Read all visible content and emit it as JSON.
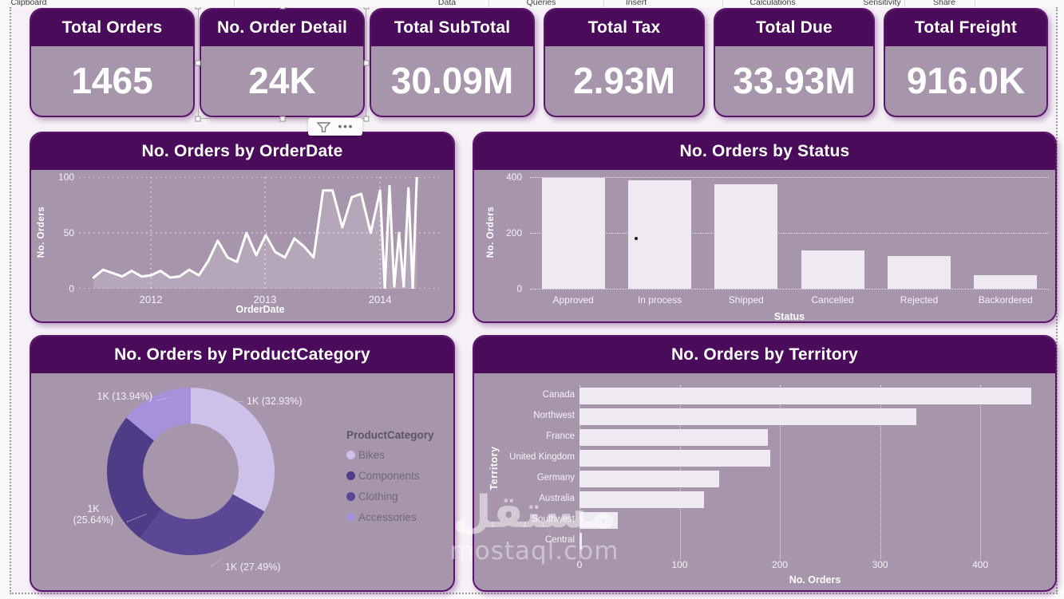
{
  "ribbon": {
    "groups": [
      "Clipboard",
      "Data",
      "Queries",
      "Insert",
      "Calculations",
      "Sensitivity",
      "Share"
    ]
  },
  "kpis": [
    {
      "label": "Total Orders",
      "value": "1465"
    },
    {
      "label": "No. Order Detail",
      "value": "24K"
    },
    {
      "label": "Total SubTotal",
      "value": "30.09M"
    },
    {
      "label": "Total Tax",
      "value": "2.93M"
    },
    {
      "label": "Total Due",
      "value": "33.93M"
    },
    {
      "label": "Total Freight",
      "value": "916.0K"
    }
  ],
  "selection": {
    "selected_card": "No. Order Detail",
    "filter_icon": "funnel-icon",
    "more_icon": "ellipsis-icon",
    "more_glyph": "•••"
  },
  "chart_data": [
    {
      "type": "line",
      "title": "No. Orders by OrderDate",
      "xlabel": "OrderDate",
      "ylabel": "No. Orders",
      "ylim": [
        0,
        100
      ],
      "y_ticks": [
        0,
        50,
        100
      ],
      "x_ticks": [
        {
          "label": "2012",
          "f": 0.198
        },
        {
          "label": "2013",
          "f": 0.512
        },
        {
          "label": "2014",
          "f": 0.829
        }
      ],
      "points": [
        [
          0.04,
          10
        ],
        [
          0.066,
          17
        ],
        [
          0.093,
          14
        ],
        [
          0.119,
          11
        ],
        [
          0.145,
          16
        ],
        [
          0.172,
          11
        ],
        [
          0.198,
          12
        ],
        [
          0.224,
          16
        ],
        [
          0.251,
          10
        ],
        [
          0.277,
          11
        ],
        [
          0.303,
          17
        ],
        [
          0.33,
          12
        ],
        [
          0.356,
          25
        ],
        [
          0.382,
          43
        ],
        [
          0.409,
          28
        ],
        [
          0.435,
          24
        ],
        [
          0.461,
          50
        ],
        [
          0.488,
          30
        ],
        [
          0.514,
          48
        ],
        [
          0.54,
          33
        ],
        [
          0.567,
          28
        ],
        [
          0.593,
          45
        ],
        [
          0.619,
          38
        ],
        [
          0.646,
          28
        ],
        [
          0.672,
          88
        ],
        [
          0.698,
          88
        ],
        [
          0.725,
          55
        ],
        [
          0.751,
          82
        ],
        [
          0.777,
          85
        ],
        [
          0.803,
          50
        ],
        [
          0.829,
          88
        ],
        [
          0.842,
          0
        ],
        [
          0.855,
          92
        ],
        [
          0.868,
          2
        ],
        [
          0.881,
          50
        ],
        [
          0.894,
          2
        ],
        [
          0.907,
          90
        ],
        [
          0.919,
          0
        ],
        [
          0.93,
          100
        ]
      ],
      "grid": true,
      "legend_position": "none"
    },
    {
      "type": "bar",
      "title": "No. Orders by Status",
      "xlabel": "Status",
      "ylabel": "No. Orders",
      "ylim": [
        0,
        400
      ],
      "y_ticks": [
        0,
        200,
        400
      ],
      "categories": [
        "Approved",
        "In process",
        "Shipped",
        "Cancelled",
        "Rejected",
        "Backordered"
      ],
      "values": [
        397,
        388,
        375,
        137,
        117,
        49
      ],
      "grid": true,
      "legend_position": "none"
    },
    {
      "type": "pie",
      "title": "No. Orders by ProductCategory",
      "legend_title": "ProductCategory",
      "legend_position": "right",
      "slices": [
        {
          "name": "Bikes",
          "label": "1K (32.93%)",
          "pct": 32.93,
          "color": "#cdc1e9"
        },
        {
          "name": "Clothing",
          "label": "1K (27.49%)",
          "pct": 27.49,
          "color": "#5a4795"
        },
        {
          "name": "Components",
          "label": "1K (25.64%)",
          "pct": 25.64,
          "color": "#4e3d86"
        },
        {
          "name": "Accessories",
          "label": "1K (13.94%)",
          "pct": 13.94,
          "color": "#a592db"
        }
      ],
      "legend_order": [
        "Bikes",
        "Components",
        "Clothing",
        "Accessories"
      ]
    },
    {
      "type": "bar-horizontal",
      "title": "No. Orders by Territory",
      "xlabel": "No. Orders",
      "ylabel": "Territory",
      "xlim": [
        0,
        470
      ],
      "x_ticks": [
        0,
        100,
        200,
        300,
        400
      ],
      "categories": [
        "Canada",
        "Northwest",
        "France",
        "United Kingdom",
        "Germany",
        "Australia",
        "Southwest",
        "Central"
      ],
      "values": [
        451,
        336,
        188,
        190,
        139,
        124,
        38,
        2
      ],
      "grid": true,
      "legend_position": "none"
    }
  ],
  "watermark": {
    "arabic": "مستقل",
    "latin": "mostaql.com"
  },
  "colors": {
    "header_purple": "#4a0b5a",
    "card_body_mauve": "#a795ab",
    "card_border": "#5a156a",
    "bar_fill": "#efeaf2",
    "canvas_bg": "#f6f1f7",
    "line_color": "#ffffff"
  }
}
